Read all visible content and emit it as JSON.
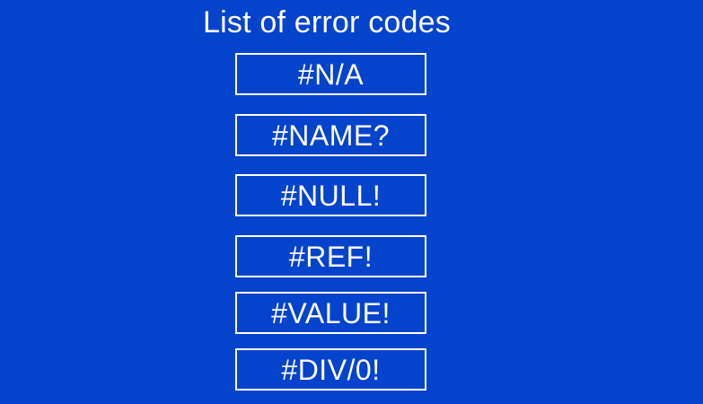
{
  "title": "List of error codes",
  "error_codes": [
    "#N/A",
    "#NAME?",
    "#NULL!",
    "#REF!",
    "#VALUE!",
    "#DIV/0!"
  ],
  "colors": {
    "background": "#0443cc",
    "text": "#ffffff",
    "box_border": "#ffffff"
  }
}
